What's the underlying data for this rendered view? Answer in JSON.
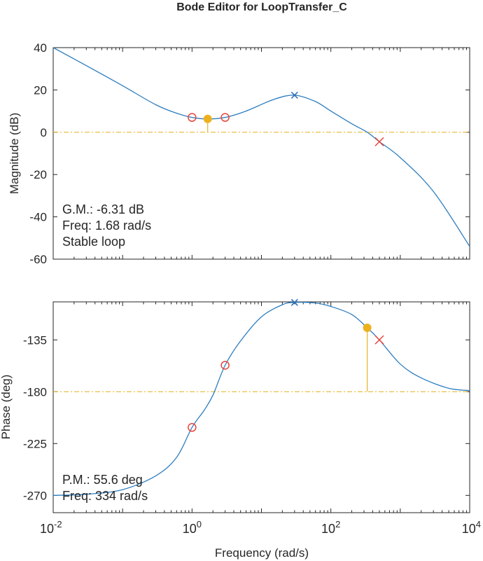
{
  "title": "Bode Editor for LoopTransfer_C",
  "chart_data": [
    {
      "type": "line",
      "panel": "magnitude",
      "ylabel": "Magnitude (dB)",
      "xscale": "log",
      "xlim": [
        0.01,
        10000
      ],
      "ylim": [
        -60,
        40
      ],
      "yticks": [
        40,
        20,
        0,
        -20,
        -40,
        -60
      ],
      "series": [
        {
          "x": [
            0.01,
            0.03,
            0.1,
            0.3,
            0.6,
            1.0,
            1.68,
            3.0,
            6.0,
            15,
            30,
            60,
            100,
            200,
            334,
            500,
            1000,
            3000,
            10000
          ],
          "y": [
            40,
            31.5,
            22,
            13,
            9,
            7,
            6.3,
            7,
            10,
            15.5,
            17.5,
            14.5,
            10,
            4,
            0,
            -4.5,
            -12,
            -28,
            -54
          ]
        }
      ],
      "reference_line": {
        "y": 0
      },
      "zeros": [
        {
          "x": 1.0,
          "y": 7
        },
        {
          "x": 3.0,
          "y": 7
        }
      ],
      "poles": [
        {
          "x": 30,
          "y": 17.5,
          "color": "#2e6fb5"
        },
        {
          "x": 500,
          "y": -4.5,
          "color": "#e8443a"
        }
      ],
      "margin_marker": {
        "x": 1.68,
        "y": 6.3
      },
      "annotations": [
        "G.M.: -6.31 dB",
        "Freq: 1.68 rad/s",
        "Stable loop"
      ]
    },
    {
      "type": "line",
      "panel": "phase",
      "ylabel": "Phase (deg)",
      "xlabel": "Frequency (rad/s)",
      "xscale": "log",
      "xlim": [
        0.01,
        10000
      ],
      "ylim": [
        -285,
        -102
      ],
      "yticks": [
        -135,
        -180,
        -225,
        -270
      ],
      "xtick_exponents": [
        "-2",
        "0",
        "2",
        "4"
      ],
      "series": [
        {
          "x": [
            0.01,
            0.03,
            0.1,
            0.3,
            0.6,
            1.0,
            1.5,
            2.0,
            3.0,
            5.0,
            10,
            20,
            30,
            60,
            100,
            200,
            334,
            500,
            1000,
            2000,
            5000,
            10000
          ],
          "y": [
            -270,
            -269,
            -265,
            -253,
            -237,
            -211,
            -196,
            -183,
            -157,
            -136,
            -115,
            -104.5,
            -102.5,
            -103,
            -106,
            -113,
            -124.5,
            -135,
            -156,
            -168,
            -177,
            -179
          ]
        }
      ],
      "reference_line": {
        "y": -180
      },
      "zeros": [
        {
          "x": 1.0,
          "y": -211
        },
        {
          "x": 3.0,
          "y": -157
        }
      ],
      "poles": [
        {
          "x": 30,
          "y": -102.5,
          "color": "#2e6fb5"
        },
        {
          "x": 500,
          "y": -135,
          "color": "#e8443a"
        }
      ],
      "margin_marker": {
        "x": 334,
        "y": -124.5
      },
      "annotations": [
        "P.M.: 55.6 deg",
        "Freq: 334 rad/s"
      ]
    }
  ],
  "xtick_base": "10"
}
